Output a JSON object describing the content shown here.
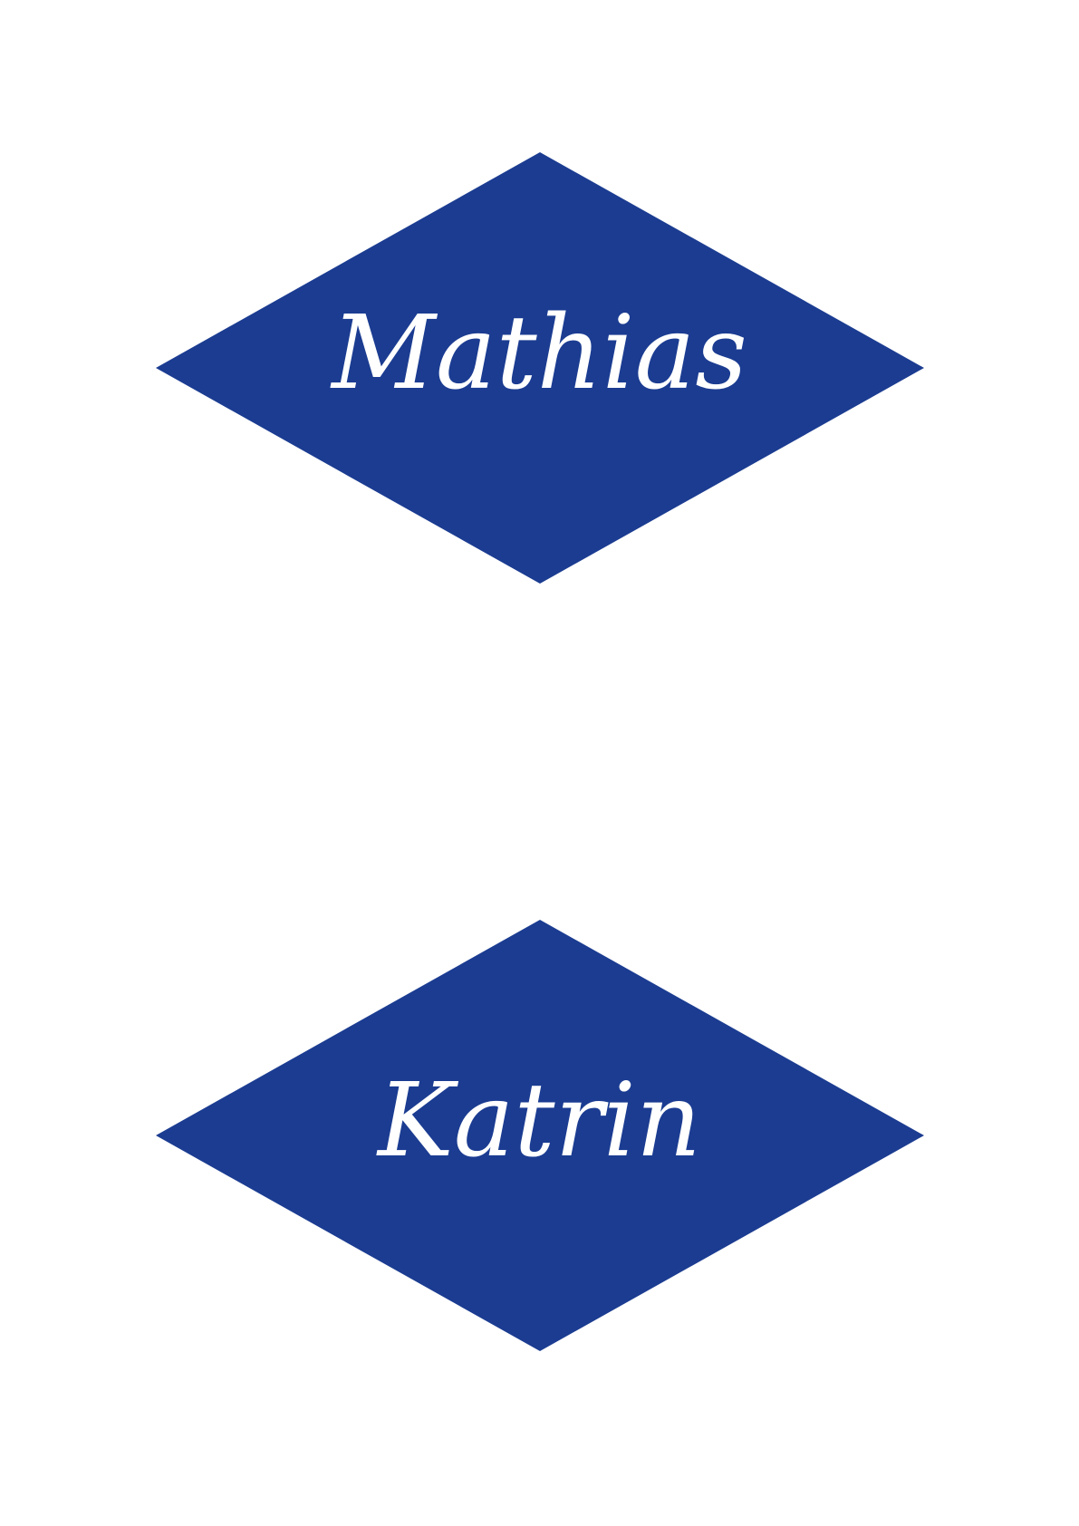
{
  "colors": {
    "background": "#ffffff",
    "diamond": "#1b3c91",
    "text": "#ffffff"
  },
  "cards": [
    {
      "name": "Mathias"
    },
    {
      "name": "Katrin"
    }
  ]
}
